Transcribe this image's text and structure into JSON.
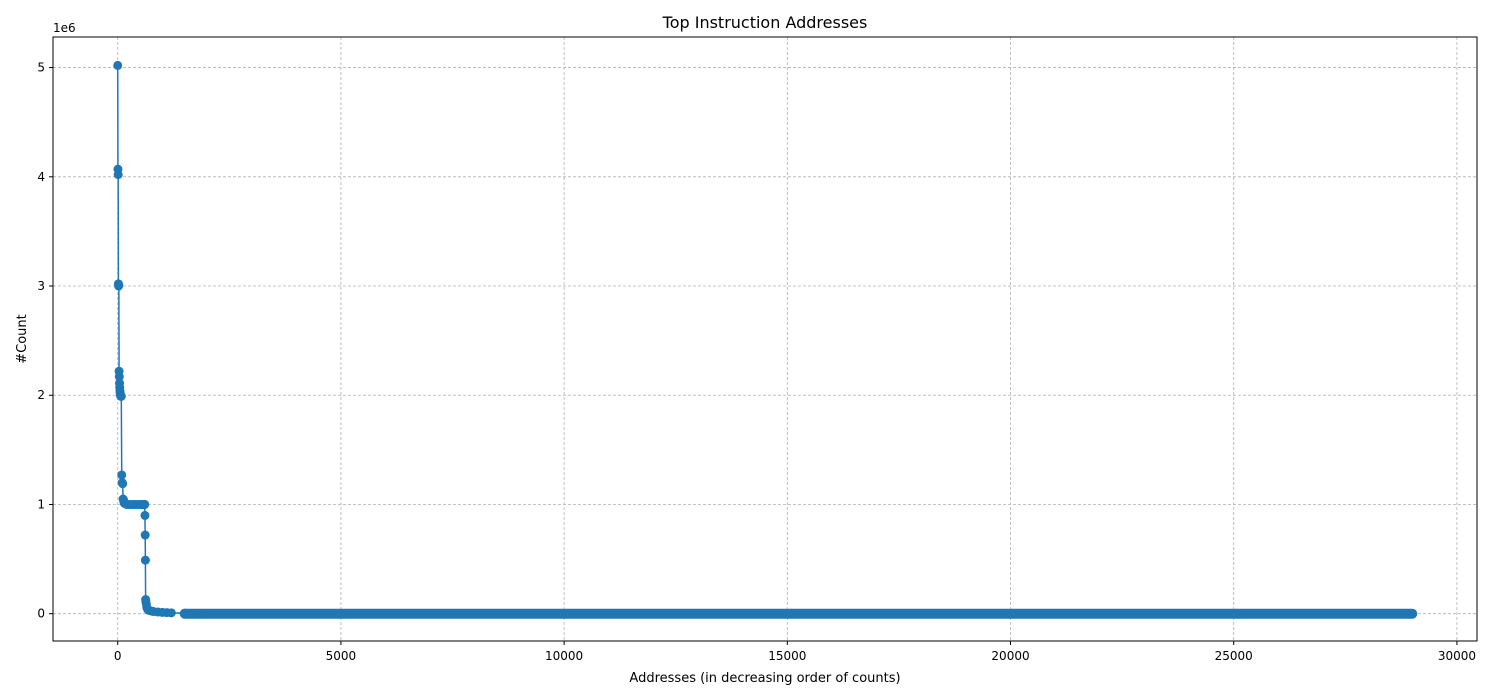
{
  "chart_data": {
    "type": "line",
    "title": "Top Instruction Addresses",
    "xlabel": "Addresses (in decreasing order of counts)",
    "ylabel": "#Count",
    "y_offset_label": "1e6",
    "y_scale": 1000000,
    "xlim": [
      -1450,
      30450
    ],
    "ylim": [
      -250000,
      5280000
    ],
    "xticks": [
      0,
      5000,
      10000,
      15000,
      20000,
      25000,
      30000
    ],
    "xtick_labels": [
      "0",
      "5000",
      "10000",
      "15000",
      "20000",
      "25000",
      "30000"
    ],
    "yticks": [
      0,
      1000000,
      2000000,
      3000000,
      4000000,
      5000000
    ],
    "ytick_labels": [
      "0",
      "1",
      "2",
      "3",
      "4",
      "5"
    ],
    "grid": true,
    "marker": "circle",
    "series": [
      {
        "color": "#1f77b4",
        "x": [
          0,
          5,
          10,
          15,
          20,
          25,
          30,
          35,
          40,
          45,
          50,
          55,
          60,
          70,
          80,
          90,
          100,
          110,
          120,
          130,
          140,
          150,
          170,
          200,
          250,
          300,
          350,
          400,
          450,
          500,
          550,
          580,
          600,
          605,
          610,
          615,
          620,
          625,
          630,
          640,
          650,
          670,
          700,
          750,
          800,
          900,
          1000,
          1100,
          1200,
          1500,
          2000,
          29000
        ],
        "y": [
          5020000,
          4070000,
          4020000,
          3020000,
          3000000,
          3010000,
          2220000,
          2170000,
          2110000,
          2070000,
          2040000,
          2020000,
          2000000,
          1990000,
          1990000,
          1270000,
          1200000,
          1190000,
          1050000,
          1040000,
          1020000,
          1010000,
          1010000,
          1000000,
          1000000,
          1000000,
          1000000,
          1000000,
          1000000,
          1000000,
          1000000,
          1000000,
          1000000,
          1000000,
          900000,
          720000,
          490000,
          130000,
          110000,
          90000,
          60000,
          40000,
          30000,
          25000,
          20000,
          15000,
          12000,
          10000,
          8000,
          5000,
          3000,
          0
        ]
      }
    ]
  }
}
